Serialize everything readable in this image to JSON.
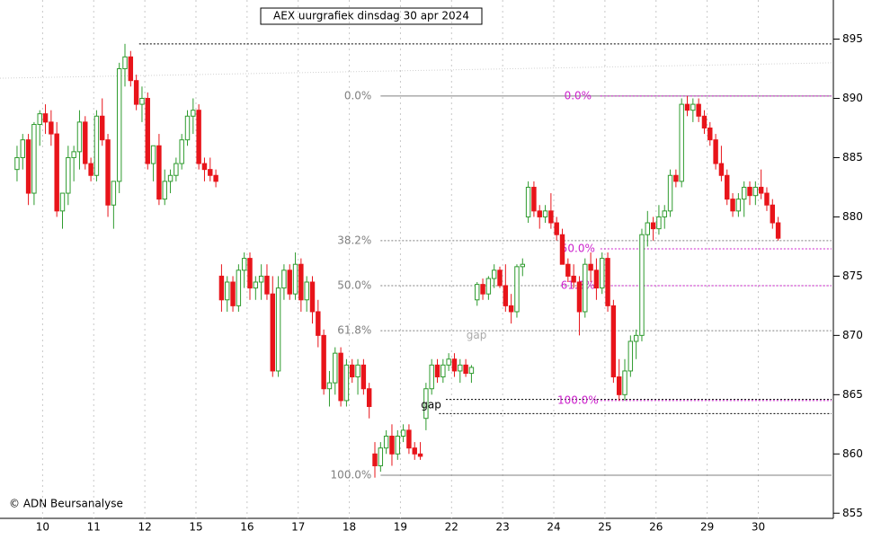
{
  "chart_data": {
    "type": "candlestick",
    "title": "AEX uurgrafiek dinsdag 30 apr 2024",
    "credit": "© ADN Beursanalyse",
    "up_color": "#2e9b2e",
    "down_color": "#e8141a",
    "xlim": [
      -3,
      143.4
    ],
    "xticks": [
      {
        "value": 4.5,
        "label": "10"
      },
      {
        "value": 13.5,
        "label": "11"
      },
      {
        "value": 22.5,
        "label": "12"
      },
      {
        "value": 31.5,
        "label": "15"
      },
      {
        "value": 40.5,
        "label": "16"
      },
      {
        "value": 49.5,
        "label": "17"
      },
      {
        "value": 58.5,
        "label": "18"
      },
      {
        "value": 67.5,
        "label": "19"
      },
      {
        "value": 76.5,
        "label": "22"
      },
      {
        "value": 85.5,
        "label": "23"
      },
      {
        "value": 94.5,
        "label": "24"
      },
      {
        "value": 103.5,
        "label": "25"
      },
      {
        "value": 112.5,
        "label": "26"
      },
      {
        "value": 121.5,
        "label": "29"
      },
      {
        "value": 130.5,
        "label": "30"
      }
    ],
    "ylim": [
      853.2,
      898.3
    ],
    "yticks": [
      855,
      860,
      865,
      870,
      875,
      880,
      885,
      890,
      895
    ],
    "candles": [
      [
        884,
        886,
        883,
        885
      ],
      [
        885,
        887,
        884,
        886.5
      ],
      [
        886.5,
        887,
        881,
        882
      ],
      [
        882,
        888,
        881,
        887.8
      ],
      [
        887.8,
        889,
        886,
        888.7
      ],
      [
        888.7,
        889.5,
        887,
        888
      ],
      [
        888,
        889,
        886,
        887
      ],
      [
        887,
        888,
        880,
        880.5
      ],
      [
        880.5,
        882,
        879,
        882
      ],
      [
        882,
        886,
        881,
        885
      ],
      [
        885,
        886,
        883,
        885.5
      ],
      [
        885.5,
        889,
        884,
        888
      ],
      [
        888,
        888.5,
        884,
        884.5
      ],
      [
        884.5,
        885,
        883,
        883.5
      ],
      [
        883.5,
        889,
        883,
        888.5
      ],
      [
        888.5,
        890,
        886,
        886.5
      ],
      [
        886.5,
        887,
        880,
        881
      ],
      [
        881,
        883,
        879,
        883
      ],
      [
        883,
        893,
        882,
        892.5
      ],
      [
        892.5,
        894.6,
        891,
        893.5
      ],
      [
        893.5,
        894,
        891,
        891.5
      ],
      [
        891.5,
        892,
        889,
        889.5
      ],
      [
        889.5,
        891,
        888,
        890
      ],
      [
        890,
        890.5,
        884,
        884.5
      ],
      [
        884.5,
        886,
        883,
        886
      ],
      [
        886,
        887,
        881,
        881.5
      ],
      [
        881.5,
        884,
        881,
        883
      ],
      [
        883,
        884,
        882,
        883.5
      ],
      [
        883.5,
        885,
        883,
        884.5
      ],
      [
        884.5,
        887,
        884,
        886.5
      ],
      [
        886.5,
        889,
        886,
        888.5
      ],
      [
        888.5,
        890,
        887,
        889
      ],
      [
        889,
        889.5,
        884,
        884.5
      ],
      [
        884.5,
        885,
        883,
        884
      ],
      [
        884,
        885,
        883,
        883.5
      ],
      [
        883.5,
        884,
        882.5,
        883
      ],
      [
        875,
        876,
        872,
        873
      ],
      [
        873,
        875,
        872,
        874.5
      ],
      [
        874.5,
        875,
        872,
        872.5
      ],
      [
        872.5,
        876,
        872,
        875.5
      ],
      [
        875.5,
        877,
        874,
        876.5
      ],
      [
        876.5,
        877,
        873,
        874
      ],
      [
        874,
        875,
        873,
        874.5
      ],
      [
        874.5,
        876,
        873,
        875
      ],
      [
        875,
        876,
        873,
        873.5
      ],
      [
        873.5,
        875,
        866.5,
        867
      ],
      [
        867,
        875,
        866.5,
        874
      ],
      [
        874,
        876,
        873,
        875.5
      ],
      [
        875.5,
        876,
        873,
        873.5
      ],
      [
        873.5,
        877,
        873,
        876
      ],
      [
        876,
        876.5,
        872,
        873
      ],
      [
        873,
        875,
        872,
        874.5
      ],
      [
        874.5,
        875,
        871,
        872
      ],
      [
        872,
        873,
        869,
        870
      ],
      [
        870,
        870.5,
        865,
        865.5
      ],
      [
        865.5,
        867,
        864,
        866
      ],
      [
        866,
        869,
        865,
        868.5
      ],
      [
        868.5,
        869,
        864,
        864.5
      ],
      [
        864.5,
        868,
        864,
        867.5
      ],
      [
        867.5,
        868,
        866,
        866.5
      ],
      [
        866.5,
        868,
        865,
        867.5
      ],
      [
        867.5,
        868,
        865,
        865.5
      ],
      [
        865.5,
        866,
        863,
        864
      ],
      [
        860,
        861,
        858,
        859
      ],
      [
        859,
        861,
        858.5,
        860.5
      ],
      [
        860.5,
        862,
        860,
        861.5
      ],
      [
        861.5,
        862.5,
        859,
        860
      ],
      [
        860,
        862,
        859.5,
        861.5
      ],
      [
        861.5,
        862.5,
        861,
        862
      ],
      [
        862,
        862.5,
        860,
        860.5
      ],
      [
        860.5,
        861,
        859.5,
        860
      ],
      [
        860,
        861,
        859.5,
        859.8
      ],
      [
        863,
        866,
        862,
        865.5
      ],
      [
        865.5,
        868,
        865,
        867.5
      ],
      [
        867.5,
        868,
        866,
        866.5
      ],
      [
        866.5,
        868,
        866,
        867.5
      ],
      [
        867.5,
        868.5,
        867,
        868
      ],
      [
        868,
        868.5,
        866.5,
        867
      ],
      [
        867,
        868,
        866,
        867.5
      ],
      [
        867.5,
        868,
        866.5,
        866.8
      ],
      [
        866.8,
        867.5,
        866,
        867.3
      ],
      [
        873,
        874.5,
        872.5,
        874.3
      ],
      [
        874.3,
        874.8,
        873,
        873.5
      ],
      [
        873.5,
        875,
        873,
        874.8
      ],
      [
        874.8,
        876,
        874,
        875.5
      ],
      [
        875.5,
        875.8,
        874,
        874.2
      ],
      [
        874.2,
        876,
        872,
        872.5
      ],
      [
        872.5,
        873.5,
        871,
        872
      ],
      [
        872,
        876,
        871.5,
        875.8
      ],
      [
        875.8,
        876.5,
        875,
        876
      ],
      [
        880,
        883,
        879.5,
        882.5
      ],
      [
        882.5,
        883,
        880,
        880.5
      ],
      [
        880.5,
        881,
        879,
        880
      ],
      [
        880,
        881,
        879.5,
        880.5
      ],
      [
        880.5,
        882,
        879,
        879.5
      ],
      [
        879.5,
        880,
        878,
        878.5
      ],
      [
        878.5,
        879,
        876,
        876
      ],
      [
        876,
        876.5,
        874.5,
        875
      ],
      [
        875,
        876,
        874,
        874.5
      ],
      [
        874.5,
        875,
        870,
        872
      ],
      [
        872,
        876.5,
        871.5,
        876
      ],
      [
        876,
        877,
        874.5,
        875.5
      ],
      [
        875.5,
        876.5,
        873,
        874
      ],
      [
        874,
        877,
        873.5,
        876.5
      ],
      [
        876.5,
        877,
        872,
        872.5
      ],
      [
        872.5,
        873,
        866,
        866.5
      ],
      [
        866.5,
        868,
        864.5,
        865
      ],
      [
        865,
        868,
        864.5,
        867
      ],
      [
        867,
        870,
        866.5,
        869.5
      ],
      [
        869.5,
        870.5,
        868,
        870
      ],
      [
        870,
        879,
        869.5,
        878.5
      ],
      [
        878.5,
        880.5,
        877.5,
        879.5
      ],
      [
        879.5,
        880,
        878,
        879
      ],
      [
        879,
        881,
        878.5,
        880
      ],
      [
        880,
        881,
        879,
        880.5
      ],
      [
        880.5,
        884,
        880,
        883.5
      ],
      [
        883.5,
        884,
        882.5,
        883
      ],
      [
        883,
        890,
        882.5,
        889.5
      ],
      [
        889.5,
        890.2,
        888.5,
        889
      ],
      [
        889,
        890,
        888,
        889.5
      ],
      [
        889.5,
        890,
        888,
        888.5
      ],
      [
        888.5,
        889,
        887,
        887.5
      ],
      [
        887.5,
        888,
        886,
        886.5
      ],
      [
        886.5,
        887,
        884,
        884.5
      ],
      [
        884.5,
        886,
        883,
        883.5
      ],
      [
        883.5,
        884,
        881,
        881.5
      ],
      [
        881.5,
        882,
        880,
        880.5
      ],
      [
        880.5,
        882,
        880,
        881.5
      ],
      [
        881.5,
        883,
        880,
        882.5
      ],
      [
        882.5,
        883,
        881,
        881.8
      ],
      [
        881.8,
        883,
        881,
        882.5
      ],
      [
        882.5,
        884,
        881.5,
        882
      ],
      [
        882,
        882.5,
        880.5,
        881
      ],
      [
        881,
        881.5,
        879,
        879.5
      ],
      [
        879.5,
        880,
        878,
        878.2
      ]
    ],
    "fib_sets": [
      {
        "color": "#808080",
        "from_x": 64,
        "levels": [
          {
            "value": 890.2,
            "label": "0.0%"
          },
          {
            "value": 878.0,
            "label": "38.2%"
          },
          {
            "value": 874.2,
            "label": "50.0%"
          },
          {
            "value": 870.4,
            "label": "61.8%"
          },
          {
            "value": 858.2,
            "label": "100.0%"
          }
        ]
      },
      {
        "color": "#cc22cc",
        "from_x": 102.7,
        "levels": [
          {
            "value": 890.2,
            "label": "0.0%"
          },
          {
            "value": 877.3,
            "label": "50.0%"
          },
          {
            "value": 874.2,
            "label": "61.8%"
          },
          {
            "value": 864.5,
            "label": "100.0%"
          }
        ]
      }
    ],
    "hlines": [
      {
        "value": 894.6,
        "from_x": 21.5
      },
      {
        "value": 864.6,
        "from_x": 75.5
      },
      {
        "value": 863.4,
        "from_x": 74.3
      }
    ],
    "trendline": {
      "x": [
        -3,
        143.4
      ],
      "y": [
        891.7,
        893.0
      ]
    },
    "annotations": [
      {
        "text": "gap",
        "x": 72.9,
        "y": 864.1,
        "color": "#000000"
      },
      {
        "text": "gap",
        "x": 80.9,
        "y": 870.0,
        "color": "#aaaaaa"
      }
    ]
  }
}
